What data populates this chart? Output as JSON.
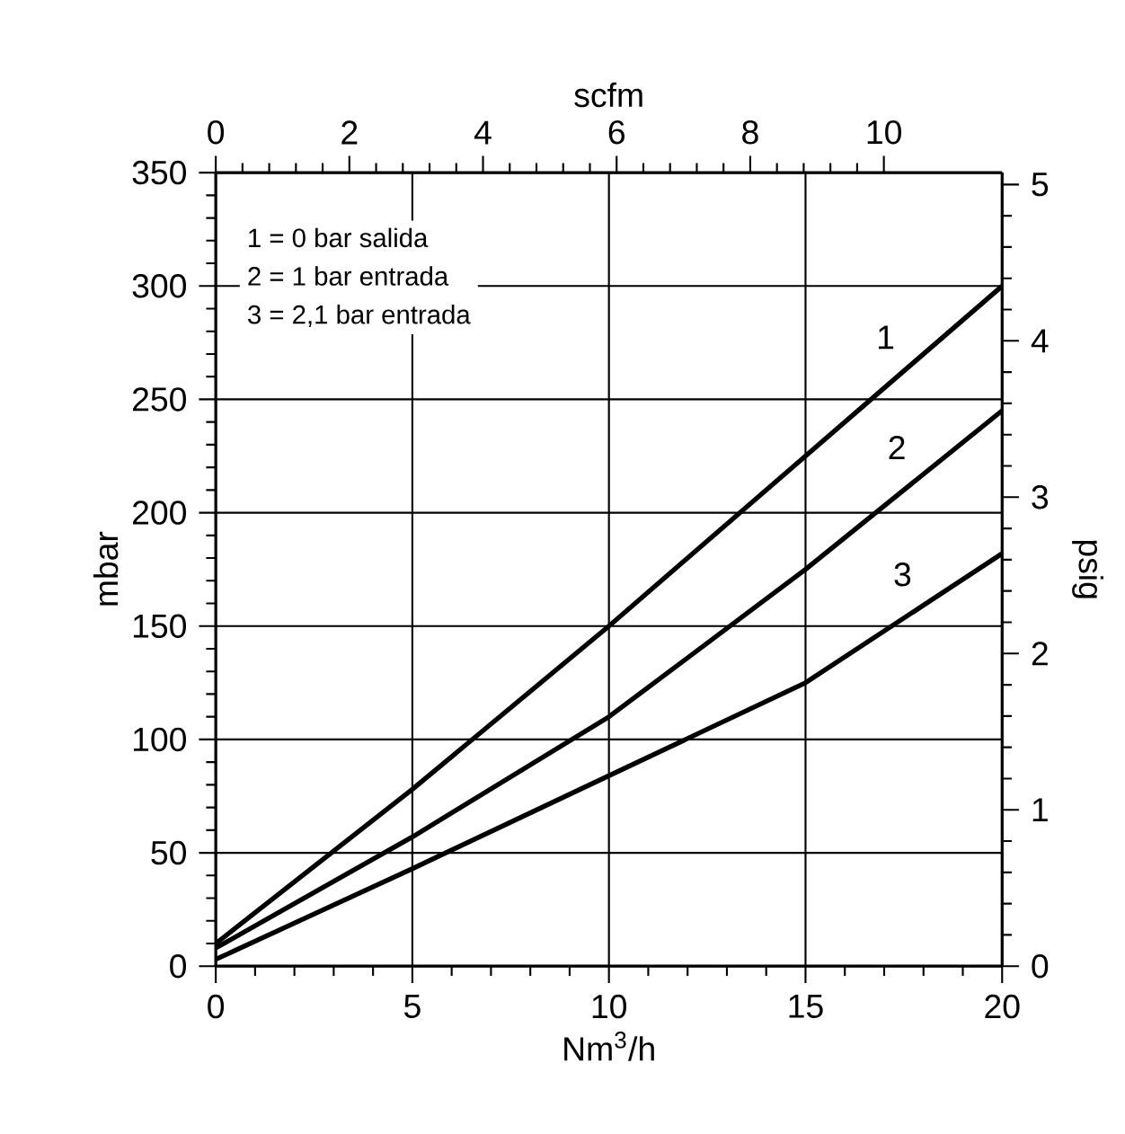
{
  "chart_data": {
    "type": "line",
    "xlabel": "Nm$^{3}$/h",
    "ylabel": "mbar",
    "y2label": "psig",
    "x2label": "scfm",
    "xlim": [
      0,
      20
    ],
    "xticks": [
      0,
      5,
      10,
      15,
      20
    ],
    "ylim": [
      0,
      350
    ],
    "yticks": [
      0,
      50,
      100,
      150,
      200,
      250,
      300,
      350
    ],
    "y2lim": [
      0,
      5.076
    ],
    "y2ticks": [
      0,
      1,
      2,
      3,
      4,
      5
    ],
    "x2lim": [
      0,
      11.77
    ],
    "x2ticks": [
      0,
      2,
      4,
      6,
      8,
      10
    ],
    "grid": true,
    "legend": false,
    "marker": "none",
    "line_style": "solid",
    "x": [
      0,
      5,
      10,
      15,
      20
    ],
    "series": [
      {
        "name": "1",
        "color": "#000000",
        "values": [
          10,
          78,
          150,
          225,
          300
        ]
      },
      {
        "name": "2",
        "color": "#000000",
        "values": [
          8,
          57,
          110,
          175,
          245
        ]
      },
      {
        "name": "3",
        "color": "#000000",
        "values": [
          3,
          43,
          84,
          125,
          182
        ]
      }
    ],
    "annotations": [
      "1 = 0 bar salida",
      "2 = 1 bar entrada",
      "3 = 2,1 bar entrada"
    ]
  }
}
